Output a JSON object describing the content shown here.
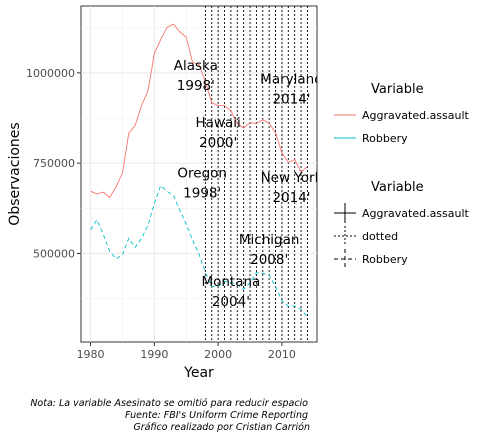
{
  "chart_data": {
    "type": "line",
    "xlabel": "Year",
    "ylabel": "Observaciones",
    "xlim": [
      1978.5,
      2015.5
    ],
    "ylim": [
      255000,
      1185000
    ],
    "x_ticks": [
      1980,
      1990,
      2000,
      2010
    ],
    "x_tick_labels": [
      "1980",
      "1990",
      "2000",
      "2010"
    ],
    "y_ticks": [
      500000,
      750000,
      1000000
    ],
    "y_tick_labels": [
      "500000",
      "750000",
      "1000000"
    ],
    "grid": true,
    "series": [
      {
        "name": "Aggravated.assault",
        "color": "#F8766D",
        "dash": "solid",
        "x": [
          1980,
          1981,
          1982,
          1983,
          1984,
          1985,
          1986,
          1987,
          1988,
          1989,
          1990,
          1991,
          1992,
          1993,
          1994,
          1995,
          1996,
          1997,
          1998,
          1999,
          2000,
          2001,
          2002,
          2003,
          2004,
          2005,
          2006,
          2007,
          2008,
          2009,
          2010,
          2011,
          2012,
          2013,
          2014
        ],
        "y": [
          672000,
          665000,
          670000,
          655000,
          685000,
          723000,
          833000,
          855000,
          910000,
          951000,
          1054000,
          1092000,
          1126000,
          1135000,
          1113000,
          1099000,
          1029000,
          1023000,
          975000,
          917000,
          910000,
          909000,
          895000,
          860000,
          847000,
          862000,
          860000,
          870000,
          860000,
          834000,
          779000,
          752000,
          760000,
          725000,
          741000
        ]
      },
      {
        "name": "Robbery",
        "color": "#00BFC4",
        "dash": "dashed",
        "x": [
          1980,
          1981,
          1982,
          1983,
          1984,
          1985,
          1986,
          1987,
          1988,
          1989,
          1990,
          1991,
          1992,
          1993,
          1994,
          1995,
          1996,
          1997,
          1998,
          1999,
          2000,
          2001,
          2002,
          2003,
          2004,
          2005,
          2006,
          2007,
          2008,
          2009,
          2010,
          2011,
          2012,
          2013,
          2014
        ],
        "y": [
          566000,
          593000,
          553000,
          506000,
          485000,
          497000,
          542000,
          517000,
          542000,
          578000,
          639000,
          688000,
          672000,
          660000,
          619000,
          581000,
          537000,
          498000,
          447000,
          409000,
          408000,
          423000,
          420000,
          414000,
          401000,
          418000,
          447000,
          445000,
          441000,
          408000,
          369000,
          354000,
          355000,
          345000,
          325000
        ]
      }
    ],
    "vlines": {
      "x": [
        1998,
        1999,
        2000,
        2001,
        2002,
        2003,
        2004,
        2005,
        2006,
        2007,
        2008,
        2009,
        2010,
        2011,
        2012,
        2013,
        2014
      ],
      "style": "dotted",
      "color": "#000000"
    },
    "annotations": [
      {
        "x": 1996.5,
        "y": 980000,
        "line1": "Alaska",
        "line2": "1998'"
      },
      {
        "x": 2000,
        "y": 822000,
        "line1": "Hawaii",
        "line2": "2000'"
      },
      {
        "x": 1997.5,
        "y": 683000,
        "line1": "Oregon",
        "line2": "1998'"
      },
      {
        "x": 2002,
        "y": 383000,
        "line1": "Montana",
        "line2": "2004'"
      },
      {
        "x": 2011.5,
        "y": 943000,
        "line1": "Maryland",
        "line2": "2014'"
      },
      {
        "x": 2011.5,
        "y": 670000,
        "line1": "New York",
        "line2": "2014'"
      },
      {
        "x": 2008,
        "y": 498000,
        "line1": "Michigan",
        "line2": "2008'"
      }
    ],
    "legends": [
      {
        "title": "Variable",
        "items": [
          {
            "label": "Aggravated.assault",
            "color": "#F8766D",
            "glyph": "line"
          },
          {
            "label": "Robbery",
            "color": "#00BFC4",
            "glyph": "line"
          }
        ]
      },
      {
        "title": "Variable",
        "items": [
          {
            "label": "Aggravated.assault",
            "color": "#000000",
            "glyph": "cross-solid"
          },
          {
            "label": "dotted",
            "color": "#000000",
            "glyph": "cross-dotted"
          },
          {
            "label": "Robbery",
            "color": "#000000",
            "glyph": "cross-dashed"
          }
        ]
      }
    ]
  },
  "caption": {
    "line1": "Nota: La variable Asesinato se omitió para reducir espacio",
    "line2": "Fuente: FBI's Uniform Crime Reporting",
    "line3": "Gráfico realizado por Cristian Carrión"
  }
}
